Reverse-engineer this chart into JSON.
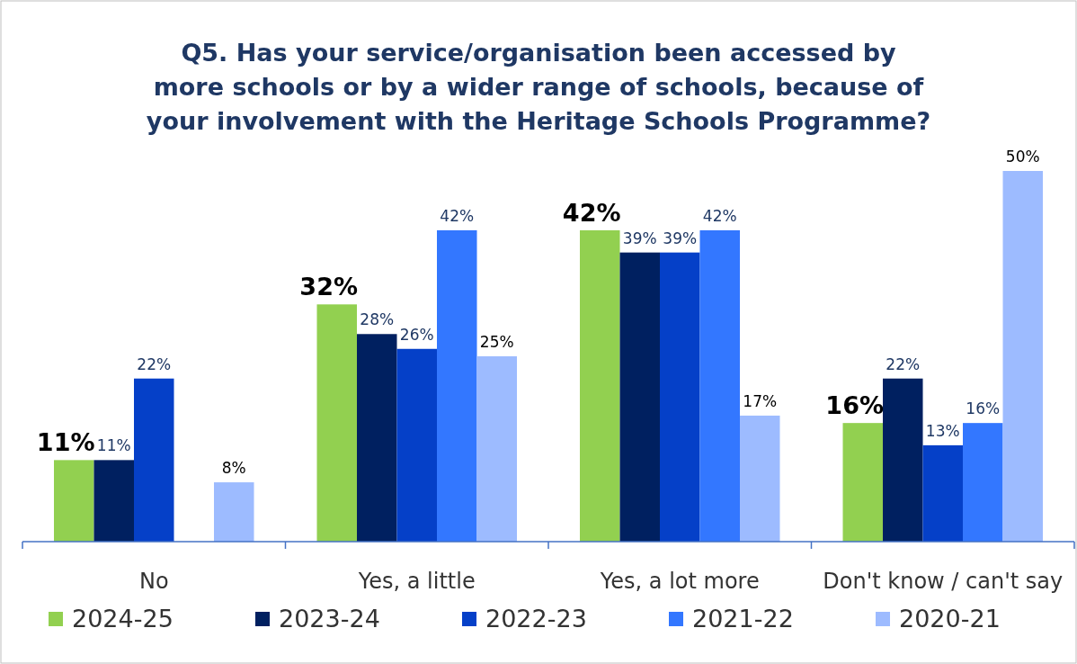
{
  "chart_data": {
    "type": "bar",
    "title": "Q5. Has your service/organisation been accessed by more schools or by a wider range of schools, because of your involvement with the Heritage Schools Programme?",
    "categories": [
      "No",
      "Yes, a little",
      "Yes, a lot more",
      "Don't know / can't say"
    ],
    "series": [
      {
        "name": "2024-25",
        "color": "#92d050",
        "values": [
          11,
          32,
          42,
          16
        ],
        "value_labels": [
          "11%",
          "32%",
          "42%",
          "16%"
        ]
      },
      {
        "name": "2023-24",
        "color": "#002060",
        "values": [
          11,
          28,
          39,
          22
        ],
        "value_labels": [
          "11%",
          "28%",
          "39%",
          "22%"
        ]
      },
      {
        "name": "2022-23",
        "color": "#0540c8",
        "values": [
          22,
          26,
          39,
          13
        ],
        "value_labels": [
          "22%",
          "26%",
          "39%",
          "13%"
        ]
      },
      {
        "name": "2021-22",
        "color": "#3377ff",
        "values": [
          null,
          42,
          42,
          16
        ],
        "value_labels": [
          null,
          "42%",
          "42%",
          "16%"
        ]
      },
      {
        "name": "2020-21",
        "color": "#9dbbff",
        "values": [
          8,
          25,
          17,
          50
        ],
        "value_labels": [
          "8%",
          "25%",
          "17%",
          "50%"
        ]
      }
    ],
    "legend": "bottom"
  }
}
